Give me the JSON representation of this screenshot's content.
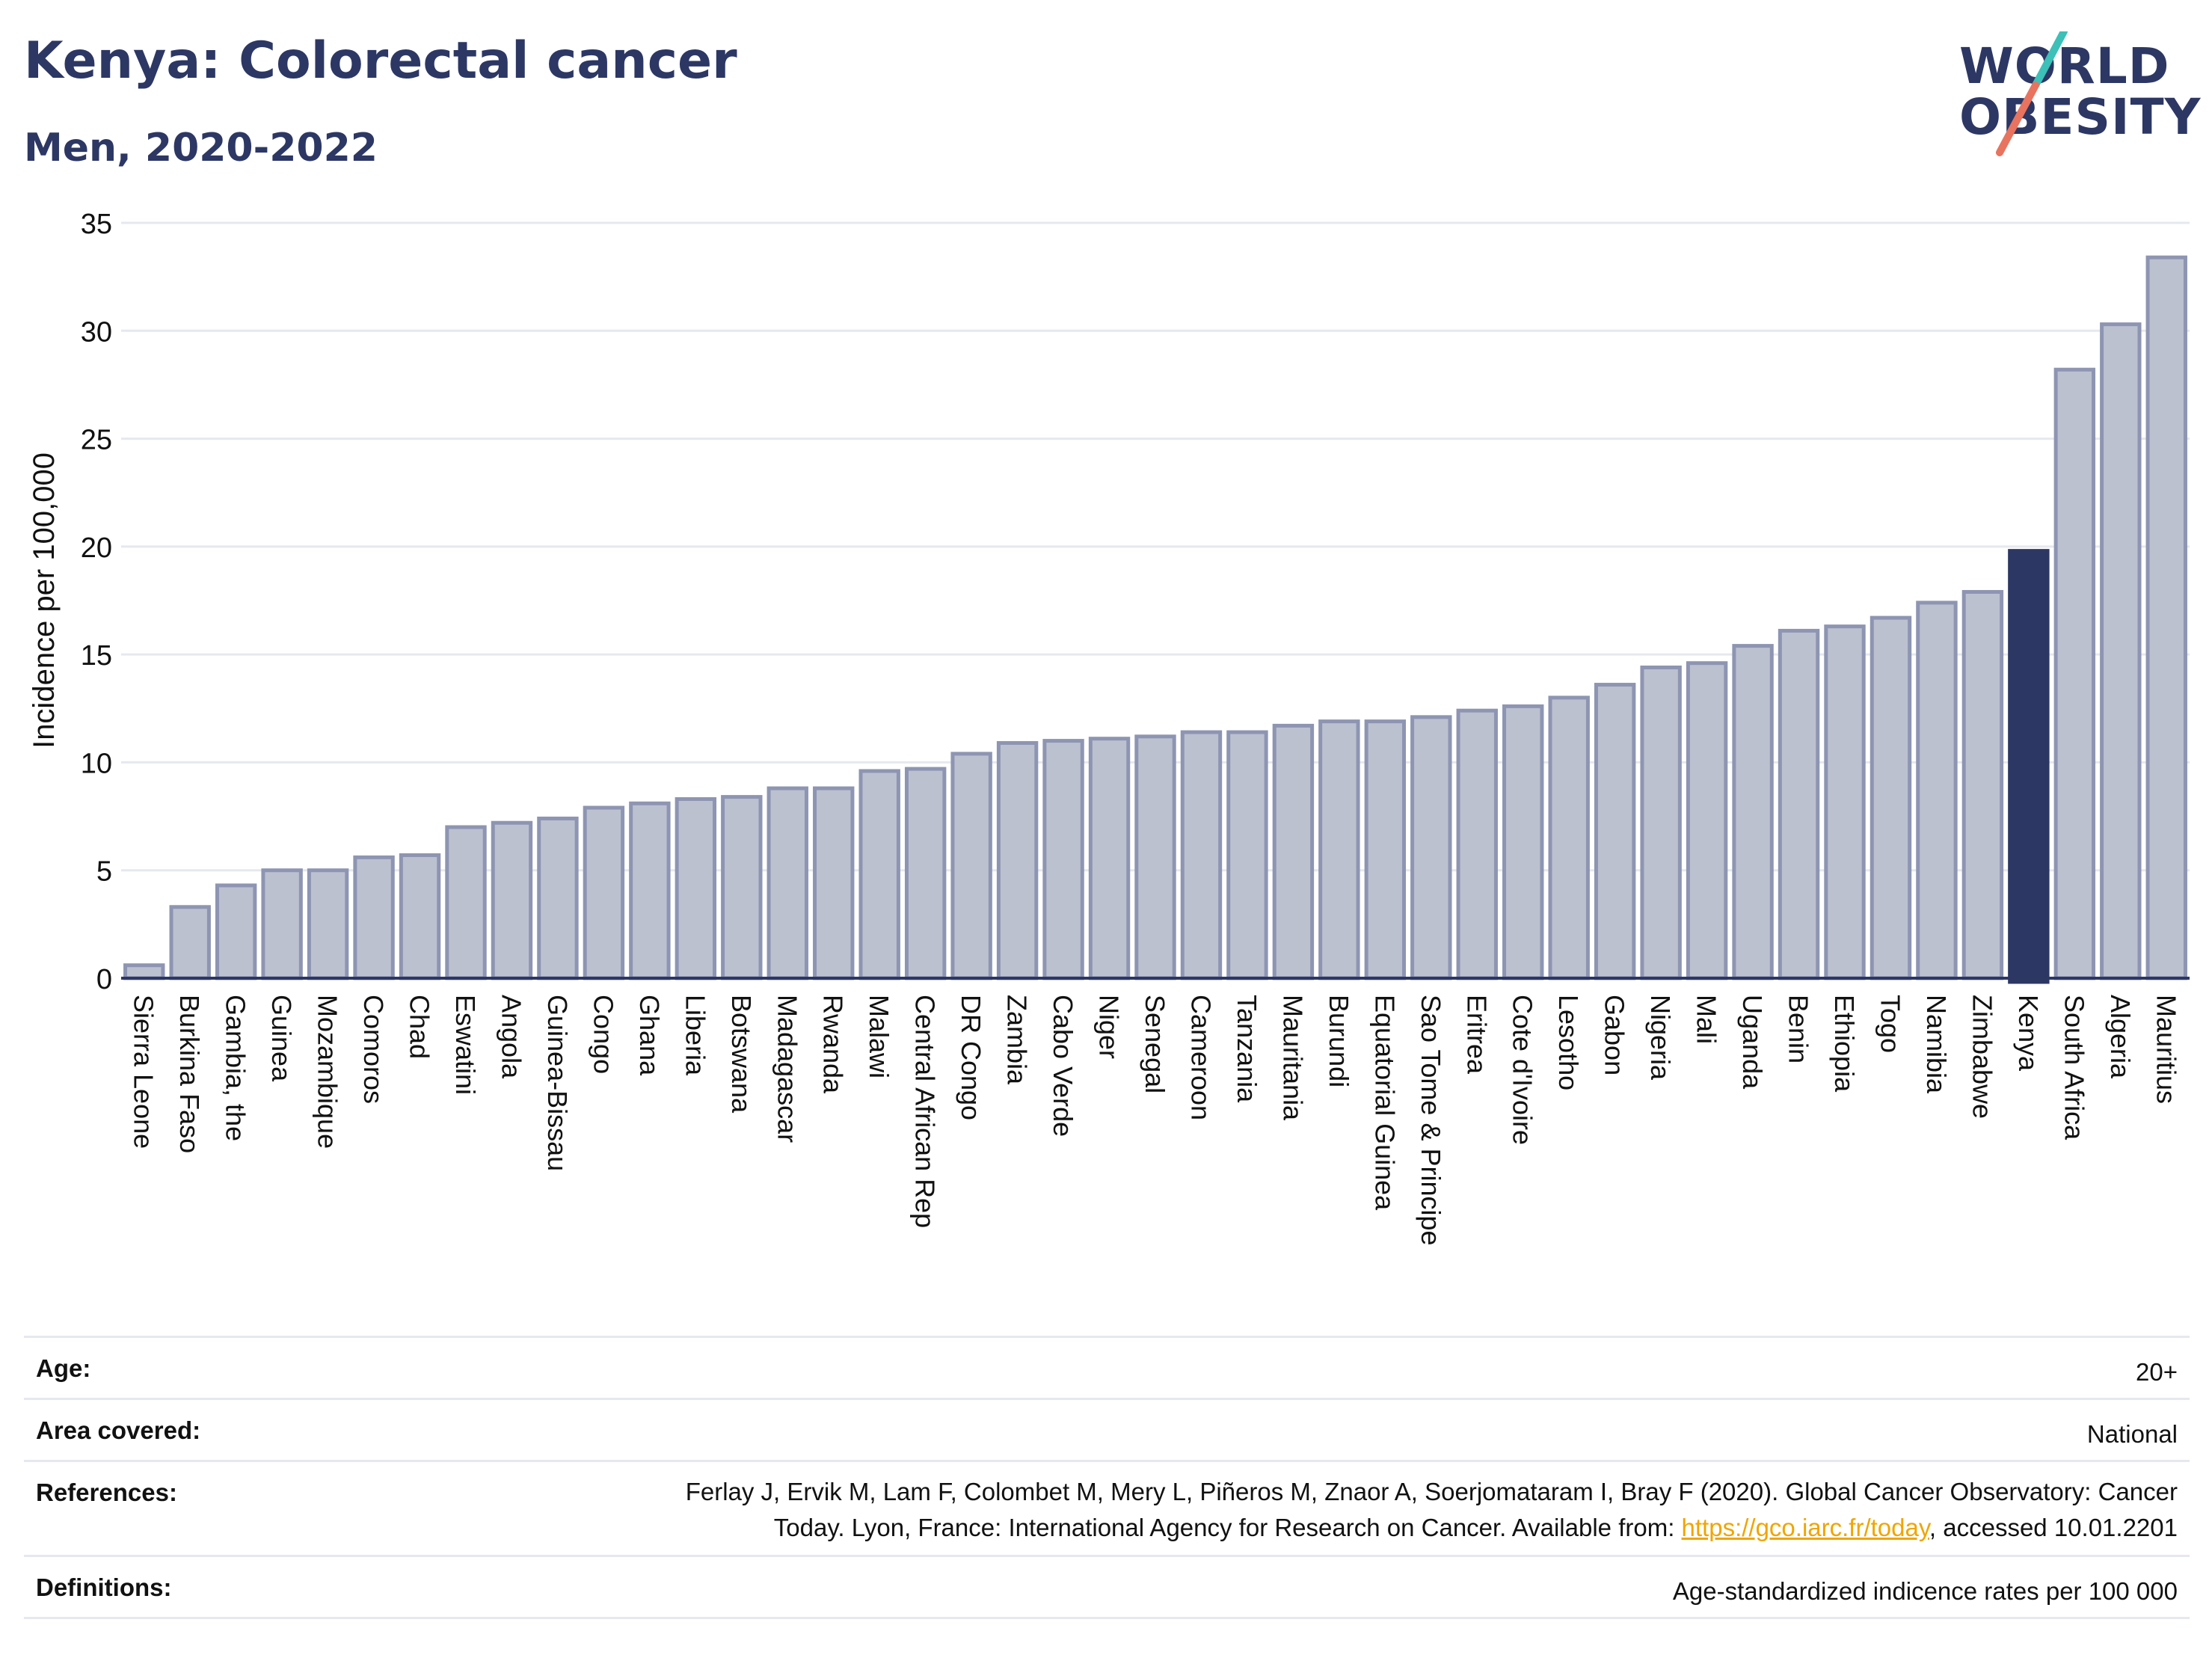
{
  "title": "Kenya: Colorectal cancer",
  "subtitle": "Men, 2020-2022",
  "logo": {
    "line1": "WORLD",
    "line2": "OBESITY",
    "accent_teal": "#3cc0b8",
    "accent_coral": "#e8735f"
  },
  "colors": {
    "bar": "#bcc1d0",
    "bar_stroke": "#8d95b2",
    "highlight": "#2c3764",
    "text": "#2c3764",
    "grid": "#e6e8ef"
  },
  "chart_data": {
    "type": "bar",
    "ylabel": "Incidence per 100,000",
    "ylim": [
      0,
      35
    ],
    "yticks": [
      0,
      5,
      10,
      15,
      20,
      25,
      30,
      35
    ],
    "grid": true,
    "highlight": "Kenya",
    "categories": [
      "Sierra Leone",
      "Burkina Faso",
      "Gambia, the",
      "Guinea",
      "Mozambique",
      "Comoros",
      "Chad",
      "Eswatini",
      "Angola",
      "Guinea-Bissau",
      "Congo",
      "Ghana",
      "Liberia",
      "Botswana",
      "Madagascar",
      "Rwanda",
      "Malawi",
      "Central African Rep",
      "DR Congo",
      "Zambia",
      "Cabo Verde",
      "Niger",
      "Senegal",
      "Cameroon",
      "Tanzania",
      "Mauritania",
      "Burundi",
      "Equatorial Guinea",
      "Sao Tome & Principe",
      "Eritrea",
      "Cote d'Ivoire",
      "Lesotho",
      "Gabon",
      "Nigeria",
      "Mali",
      "Uganda",
      "Benin",
      "Ethiopia",
      "Togo",
      "Namibia",
      "Zimbabwe",
      "Kenya",
      "South Africa",
      "Algeria",
      "Mauritius"
    ],
    "values": [
      0.6,
      3.3,
      4.3,
      5.0,
      5.0,
      5.6,
      5.7,
      7.0,
      7.2,
      7.4,
      7.9,
      8.1,
      8.3,
      8.4,
      8.8,
      8.8,
      9.6,
      9.7,
      10.4,
      10.9,
      11.0,
      11.1,
      11.2,
      11.4,
      11.4,
      11.7,
      11.9,
      11.9,
      12.1,
      12.4,
      12.6,
      13.0,
      13.6,
      14.4,
      14.6,
      15.4,
      16.1,
      16.3,
      16.7,
      17.4,
      17.9,
      19.8,
      28.2,
      30.3,
      33.4
    ]
  },
  "meta": {
    "age_label": "Age:",
    "age_value": "20+",
    "area_label": "Area covered:",
    "area_value": "National",
    "ref_label": "References:",
    "ref_line1": "Ferlay J, Ervik M, Lam F, Colombet M, Mery L, Piñeros M, Znaor A, Soerjomataram I, Bray F (2020). Global Cancer Observatory: Cancer",
    "ref_line2_pre": "Today. Lyon, France: International Agency for Research on Cancer. Available from: ",
    "ref_link": "https://gco.iarc.fr/today",
    "ref_line2_post": ", accessed 10.01.2201",
    "def_label": "Definitions:",
    "def_value": "Age-standardized indicence rates per 100 000"
  }
}
